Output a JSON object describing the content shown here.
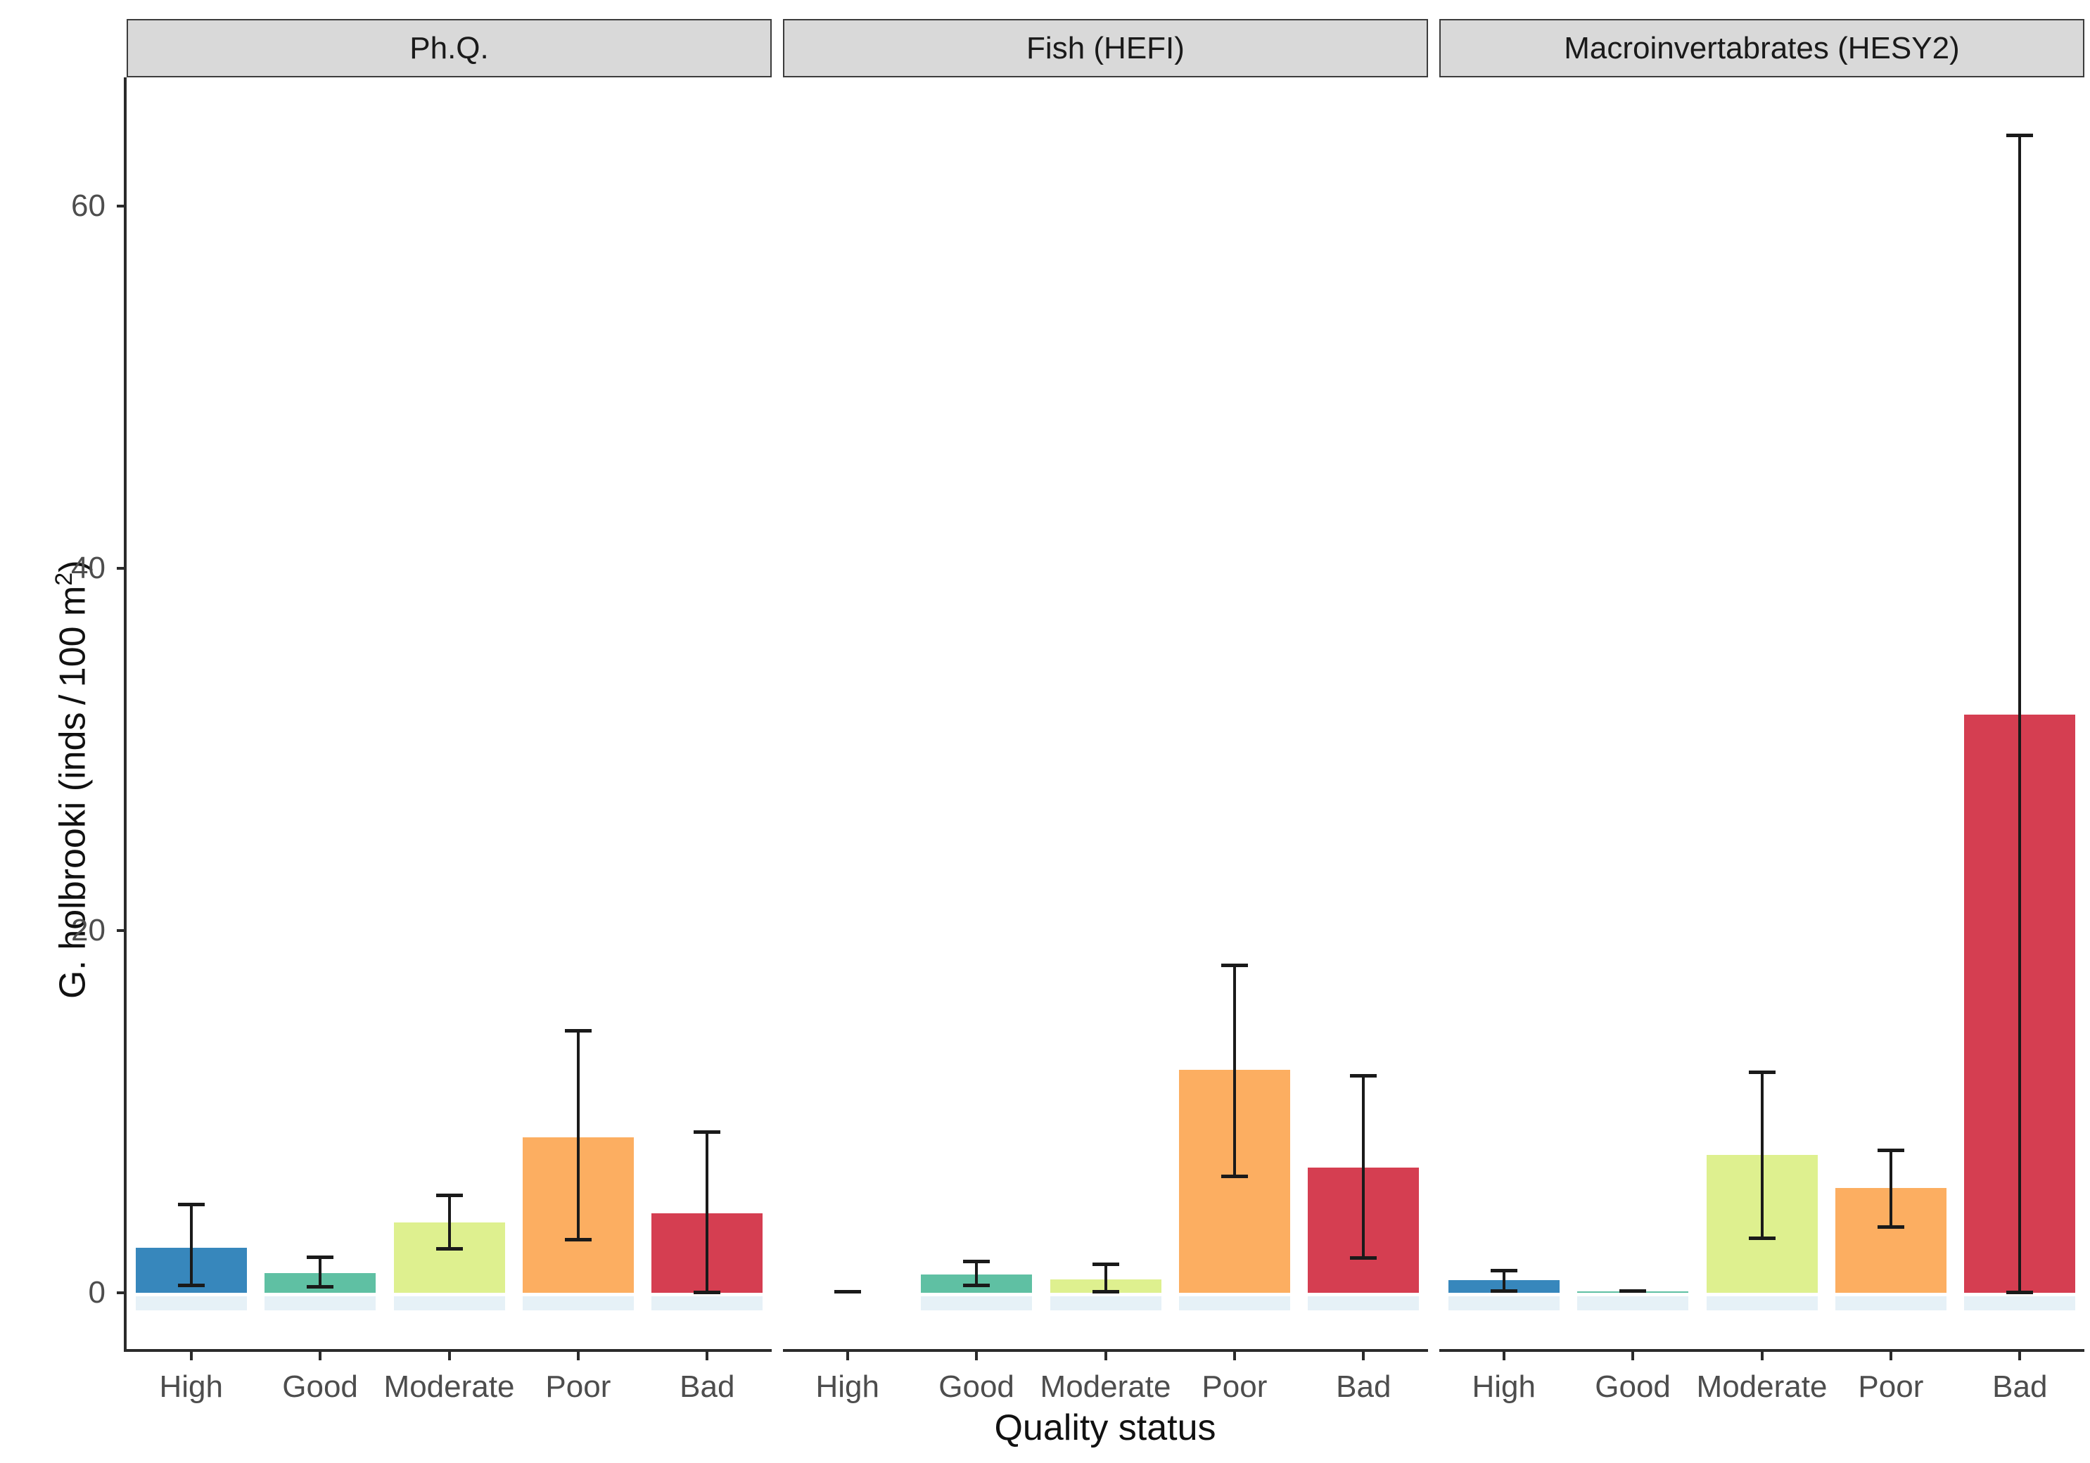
{
  "chart_data": {
    "type": "bar",
    "title": "",
    "xlabel": "Quality status",
    "ylabel": "G. holbrooki (inds/100 m2)",
    "ylabel_prefix": "G. holbrooki (inds / 100 m",
    "ylabel_sup": "2",
    "ylabel_suffix": ")",
    "facet_variable_values": [
      "Ph.Q.",
      "Fish (HEFI)",
      "Macroinvertabrates (HESY2)"
    ],
    "categories": [
      "High",
      "Good",
      "Moderate",
      "Poor",
      "Bad"
    ],
    "yticks": [
      "0",
      "20",
      "40",
      "60"
    ],
    "ytick_values": [
      0,
      20,
      40,
      60
    ],
    "ylim": [
      -3.1,
      67.1
    ],
    "grid": false,
    "legend": "none",
    "error_bars": true,
    "bar_colors": [
      "#3787bc",
      "#5fc0a3",
      "#def08f",
      "#fcae61",
      "#d53e51"
    ],
    "panels": [
      {
        "label": "Ph.Q.",
        "values": [
          2.5,
          1.1,
          3.9,
          8.6,
          4.4
        ],
        "err_low": [
          0.4,
          0.3,
          2.4,
          2.9,
          0.0
        ],
        "err_high": [
          4.9,
          2.0,
          5.4,
          14.5,
          8.9
        ]
      },
      {
        "label": "Fish (HEFI)",
        "values": [
          0.04,
          1.0,
          0.75,
          12.3,
          6.9
        ],
        "err_low": [
          null,
          0.4,
          0.05,
          6.4,
          1.9
        ],
        "err_high": [
          null,
          1.75,
          1.6,
          18.1,
          12.0
        ]
      },
      {
        "label": "Macroinvertabrates (HESY2)",
        "values": [
          0.7,
          0.08,
          7.6,
          5.8,
          31.9
        ],
        "err_low": [
          0.1,
          null,
          3.0,
          3.6,
          0.0
        ],
        "err_high": [
          1.25,
          null,
          12.2,
          7.9,
          63.9
        ]
      }
    ],
    "colors": {
      "strip_bg": "#d9d9d9",
      "strip_border": "#3c3c3c",
      "axis": "#2b2b2b",
      "tick_label": "#4d4d4d",
      "title_text": "#111111",
      "bar_shadow": "rgba(205,228,240,0.5)",
      "error_bar": "#1a1a1a"
    }
  }
}
